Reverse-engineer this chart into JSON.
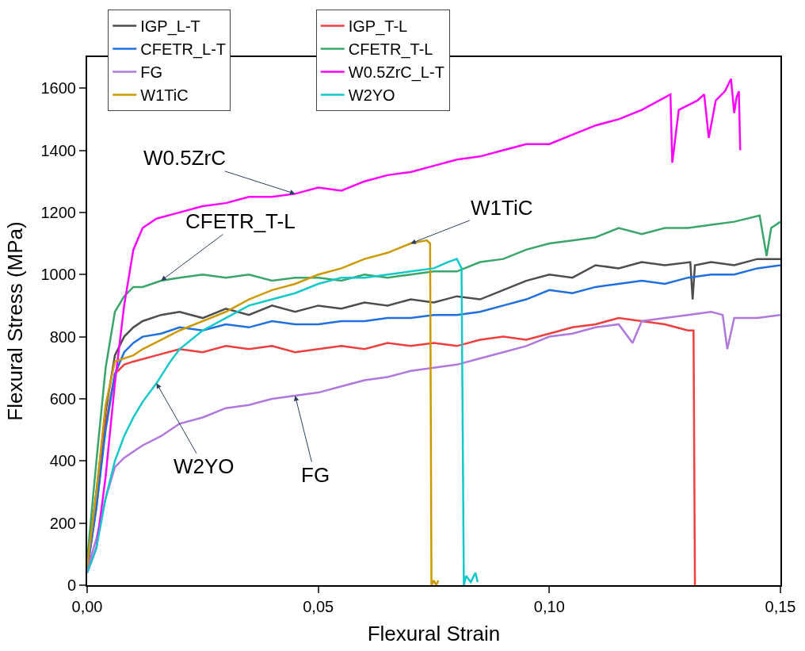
{
  "chart_data": {
    "type": "line",
    "xlabel": "Flexural Strain",
    "ylabel": "Flexural Stress (MPa)",
    "xlim": [
      0,
      0.15
    ],
    "ylim": [
      0,
      1700
    ],
    "xticks": [
      {
        "value": 0,
        "label": "0,00"
      },
      {
        "value": 0.05,
        "label": "0,05"
      },
      {
        "value": 0.1,
        "label": "0,10"
      },
      {
        "value": 0.15,
        "label": "0,15"
      }
    ],
    "yticks": [
      0,
      200,
      400,
      600,
      800,
      1000,
      1200,
      1400,
      1600
    ],
    "legend": "top left",
    "marker": "none",
    "line_style": "solid",
    "series": [
      {
        "name": "IGP_L-T",
        "color": "#4d4d4d",
        "x": [
          0,
          0.002,
          0.004,
          0.006,
          0.008,
          0.01,
          0.012,
          0.016,
          0.02,
          0.025,
          0.03,
          0.035,
          0.04,
          0.045,
          0.05,
          0.055,
          0.06,
          0.065,
          0.07,
          0.075,
          0.08,
          0.085,
          0.09,
          0.095,
          0.1,
          0.105,
          0.11,
          0.115,
          0.12,
          0.125,
          0.1305,
          0.131,
          0.1315,
          0.135,
          0.14,
          0.145,
          0.15
        ],
        "values": [
          60,
          300,
          560,
          740,
          800,
          830,
          850,
          870,
          880,
          860,
          890,
          870,
          900,
          880,
          900,
          890,
          910,
          900,
          920,
          910,
          930,
          920,
          950,
          980,
          1000,
          990,
          1030,
          1020,
          1040,
          1030,
          1040,
          920,
          1030,
          1040,
          1030,
          1050,
          1050
        ]
      },
      {
        "name": "IGP_T-L",
        "color": "#ef3e3e",
        "x": [
          0,
          0.002,
          0.004,
          0.006,
          0.008,
          0.01,
          0.015,
          0.02,
          0.025,
          0.03,
          0.035,
          0.04,
          0.045,
          0.05,
          0.055,
          0.06,
          0.065,
          0.07,
          0.075,
          0.08,
          0.085,
          0.09,
          0.095,
          0.1,
          0.105,
          0.11,
          0.115,
          0.12,
          0.125,
          0.13,
          0.1312,
          0.1315
        ],
        "values": [
          50,
          250,
          520,
          680,
          710,
          720,
          740,
          760,
          750,
          770,
          760,
          770,
          750,
          760,
          770,
          760,
          780,
          770,
          780,
          770,
          790,
          800,
          790,
          810,
          830,
          840,
          860,
          850,
          840,
          820,
          820,
          0
        ]
      },
      {
        "name": "CFETR_L-T",
        "color": "#1f6fde",
        "x": [
          0,
          0.002,
          0.004,
          0.006,
          0.008,
          0.01,
          0.012,
          0.016,
          0.02,
          0.025,
          0.03,
          0.035,
          0.04,
          0.045,
          0.05,
          0.055,
          0.06,
          0.065,
          0.07,
          0.075,
          0.08,
          0.085,
          0.09,
          0.095,
          0.1,
          0.105,
          0.11,
          0.115,
          0.12,
          0.125,
          0.13,
          0.135,
          0.14,
          0.145,
          0.15
        ],
        "values": [
          50,
          250,
          500,
          680,
          750,
          780,
          800,
          810,
          830,
          820,
          840,
          830,
          850,
          840,
          840,
          850,
          850,
          860,
          860,
          870,
          870,
          880,
          900,
          920,
          950,
          940,
          960,
          970,
          980,
          970,
          990,
          1000,
          1000,
          1020,
          1030
        ]
      },
      {
        "name": "CFETR_T-L",
        "color": "#3aa56b",
        "x": [
          0,
          0.002,
          0.004,
          0.006,
          0.008,
          0.01,
          0.012,
          0.016,
          0.02,
          0.025,
          0.03,
          0.035,
          0.04,
          0.045,
          0.05,
          0.055,
          0.06,
          0.065,
          0.07,
          0.075,
          0.08,
          0.085,
          0.09,
          0.095,
          0.1,
          0.105,
          0.11,
          0.115,
          0.12,
          0.125,
          0.13,
          0.135,
          0.14,
          0.1455,
          0.147,
          0.148,
          0.15
        ],
        "values": [
          80,
          400,
          700,
          880,
          930,
          960,
          960,
          980,
          990,
          1000,
          990,
          1000,
          980,
          990,
          990,
          980,
          1000,
          990,
          1000,
          1010,
          1010,
          1040,
          1050,
          1080,
          1100,
          1110,
          1120,
          1150,
          1130,
          1150,
          1150,
          1160,
          1170,
          1190,
          1060,
          1150,
          1170
        ]
      },
      {
        "name": "FG",
        "color": "#b077dd",
        "x": [
          0,
          0.002,
          0.004,
          0.006,
          0.008,
          0.01,
          0.012,
          0.016,
          0.02,
          0.025,
          0.03,
          0.035,
          0.04,
          0.045,
          0.05,
          0.055,
          0.06,
          0.065,
          0.07,
          0.075,
          0.08,
          0.085,
          0.09,
          0.095,
          0.1,
          0.105,
          0.11,
          0.115,
          0.118,
          0.12,
          0.125,
          0.13,
          0.135,
          0.1375,
          0.1385,
          0.14,
          0.145,
          0.15
        ],
        "values": [
          50,
          150,
          280,
          380,
          410,
          430,
          450,
          480,
          520,
          540,
          570,
          580,
          600,
          610,
          620,
          640,
          660,
          670,
          690,
          700,
          710,
          730,
          750,
          770,
          800,
          810,
          830,
          840,
          780,
          850,
          860,
          870,
          880,
          870,
          760,
          860,
          860,
          870
        ]
      },
      {
        "name": "W0.5ZrC_L-T",
        "color": "#ff00ff",
        "x": [
          0,
          0.002,
          0.004,
          0.006,
          0.008,
          0.01,
          0.012,
          0.015,
          0.02,
          0.025,
          0.03,
          0.035,
          0.04,
          0.045,
          0.05,
          0.055,
          0.06,
          0.065,
          0.07,
          0.075,
          0.08,
          0.085,
          0.09,
          0.095,
          0.1,
          0.105,
          0.11,
          0.115,
          0.12,
          0.125,
          0.1262,
          0.1266,
          0.128,
          0.132,
          0.1335,
          0.1345,
          0.136,
          0.138,
          0.1393,
          0.14,
          0.1405,
          0.141,
          0.1413
        ],
        "values": [
          40,
          120,
          350,
          650,
          900,
          1080,
          1150,
          1180,
          1200,
          1220,
          1230,
          1250,
          1250,
          1260,
          1280,
          1270,
          1300,
          1320,
          1330,
          1350,
          1370,
          1380,
          1400,
          1420,
          1420,
          1450,
          1480,
          1500,
          1530,
          1570,
          1580,
          1360,
          1530,
          1560,
          1580,
          1440,
          1560,
          1590,
          1630,
          1520,
          1570,
          1590,
          1400
        ]
      },
      {
        "name": "W1TiC",
        "color": "#cc9a00",
        "x": [
          0,
          0.002,
          0.004,
          0.006,
          0.008,
          0.01,
          0.012,
          0.016,
          0.02,
          0.025,
          0.03,
          0.035,
          0.04,
          0.045,
          0.05,
          0.055,
          0.06,
          0.065,
          0.07,
          0.0735,
          0.0742,
          0.0745,
          0.075,
          0.0755,
          0.076
        ],
        "values": [
          60,
          300,
          580,
          720,
          730,
          740,
          760,
          790,
          820,
          850,
          880,
          920,
          950,
          970,
          1000,
          1020,
          1050,
          1070,
          1100,
          1110,
          1100,
          0,
          15,
          0,
          15
        ]
      },
      {
        "name": "W2YO",
        "color": "#12c8c8",
        "x": [
          0,
          0.002,
          0.004,
          0.006,
          0.008,
          0.01,
          0.012,
          0.015,
          0.018,
          0.02,
          0.025,
          0.03,
          0.035,
          0.04,
          0.045,
          0.05,
          0.055,
          0.06,
          0.065,
          0.07,
          0.075,
          0.078,
          0.08,
          0.081,
          0.0815,
          0.082,
          0.083,
          0.084,
          0.0845
        ],
        "values": [
          40,
          120,
          280,
          400,
          480,
          540,
          590,
          650,
          720,
          760,
          820,
          860,
          900,
          920,
          940,
          970,
          990,
          990,
          1000,
          1010,
          1020,
          1040,
          1050,
          1020,
          0,
          30,
          10,
          40,
          10
        ]
      }
    ],
    "annotations": [
      {
        "text": "W0.5ZrC",
        "x": 0.045,
        "y": 1260
      },
      {
        "text": "CFETR_T-L",
        "x": 0.016,
        "y": 980
      },
      {
        "text": "W1TiC",
        "x": 0.07,
        "y": 1100
      },
      {
        "text": "W2YO",
        "x": 0.015,
        "y": 650
      },
      {
        "text": "FG",
        "x": 0.045,
        "y": 610
      }
    ]
  }
}
